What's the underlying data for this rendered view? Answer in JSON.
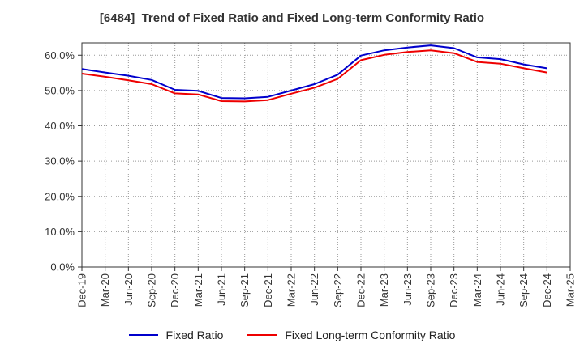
{
  "chart_data": {
    "type": "line",
    "title": "[6484]  Trend of Fixed Ratio and Fixed Long-term Conformity Ratio",
    "x": [
      "Dec-19",
      "Mar-20",
      "Jun-20",
      "Sep-20",
      "Dec-20",
      "Mar-21",
      "Jun-21",
      "Sep-21",
      "Dec-21",
      "Mar-22",
      "Jun-22",
      "Sep-22",
      "Dec-22",
      "Mar-23",
      "Jun-23",
      "Sep-23",
      "Dec-23",
      "Mar-24",
      "Jun-24",
      "Sep-24",
      "Dec-24",
      "Mar-25"
    ],
    "ytick_labels": [
      "0.0%",
      "10.0%",
      "20.0%",
      "30.0%",
      "40.0%",
      "50.0%",
      "60.0%"
    ],
    "ylim": [
      0,
      63.5
    ],
    "grid": true,
    "legend_position": "bottom",
    "series": [
      {
        "name": "Fixed Ratio",
        "color": "#0000cc",
        "values": [
          56.1,
          55.1,
          54.2,
          53.0,
          50.2,
          49.9,
          47.9,
          47.8,
          48.2,
          50.0,
          51.8,
          54.5,
          59.9,
          61.4,
          62.2,
          62.8,
          62.0,
          59.4,
          58.9,
          57.4,
          56.3,
          null
        ]
      },
      {
        "name": "Fixed Long-term Conformity Ratio",
        "color": "#ee0000",
        "values": [
          54.8,
          53.9,
          52.9,
          51.8,
          49.2,
          48.9,
          47.0,
          46.9,
          47.3,
          49.1,
          50.8,
          53.3,
          58.6,
          60.1,
          60.9,
          61.4,
          60.6,
          58.1,
          57.6,
          56.3,
          55.1,
          null
        ]
      }
    ]
  }
}
